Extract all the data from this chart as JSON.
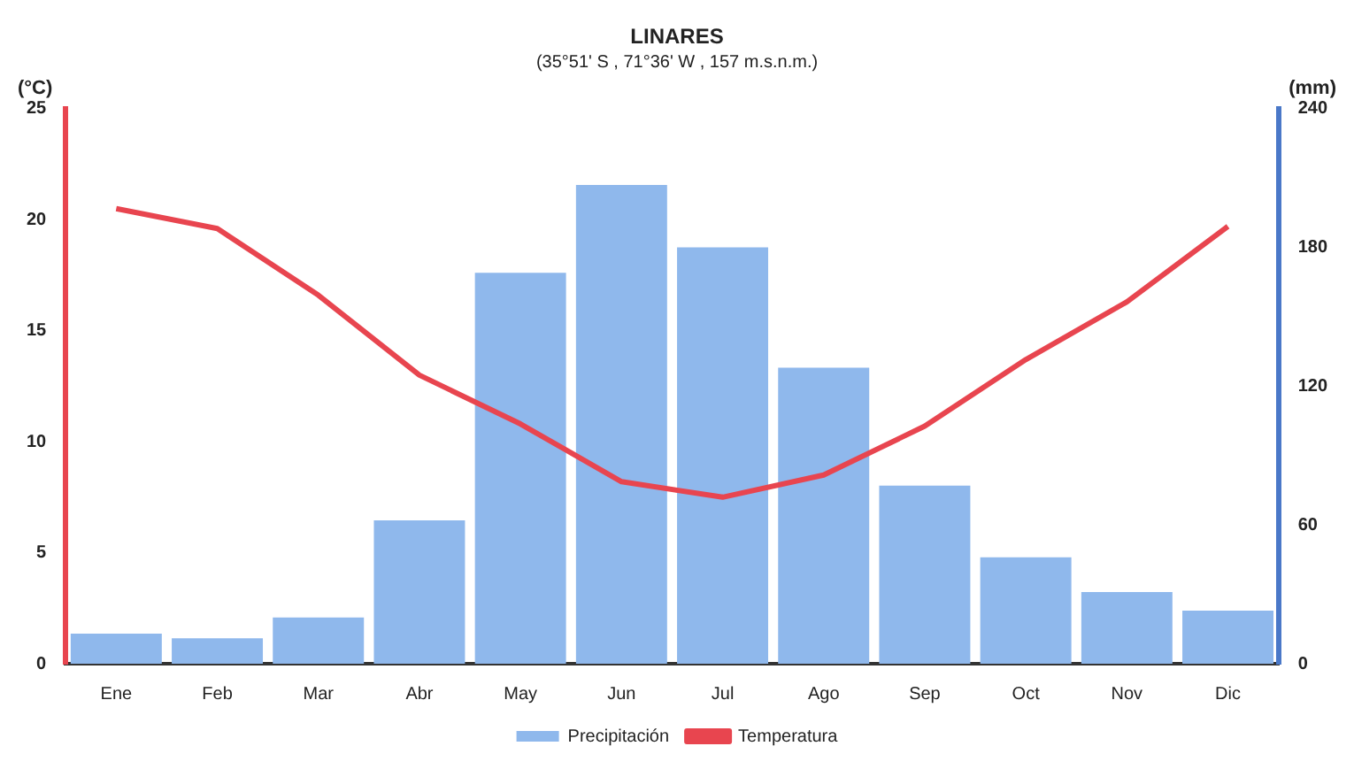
{
  "chart_data": {
    "type": "bar",
    "title": "LINARES",
    "subtitle": "(35°51' S , 71°36' W , 157 m.s.n.m.)",
    "ylabel": "(°C)",
    "y2label": "(mm)",
    "categories": [
      "Ene",
      "Feb",
      "Mar",
      "Abr",
      "May",
      "Jun",
      "Jul",
      "Ago",
      "Sep",
      "Oct",
      "Nov",
      "Dic"
    ],
    "series": [
      {
        "name": "Precipitación",
        "axis": "y2",
        "color": "#8fb8ec",
        "values": [
          13,
          11,
          20,
          62,
          169,
          207,
          180,
          128,
          77,
          46,
          31,
          23
        ]
      },
      {
        "name": "Temperatura",
        "type": "line",
        "axis": "y",
        "color": "#e8454f",
        "values": [
          20.5,
          19.6,
          16.6,
          13.0,
          10.8,
          8.2,
          7.5,
          8.5,
          10.7,
          13.7,
          16.3,
          19.7
        ]
      }
    ],
    "ylim": [
      0,
      25
    ],
    "yticks": [
      0,
      5,
      10,
      15,
      20,
      25
    ],
    "y2lim": [
      0,
      240
    ],
    "y2ticks": [
      0,
      60,
      120,
      180,
      240
    ],
    "grid": false,
    "legend": "bottom",
    "marker": "none"
  }
}
